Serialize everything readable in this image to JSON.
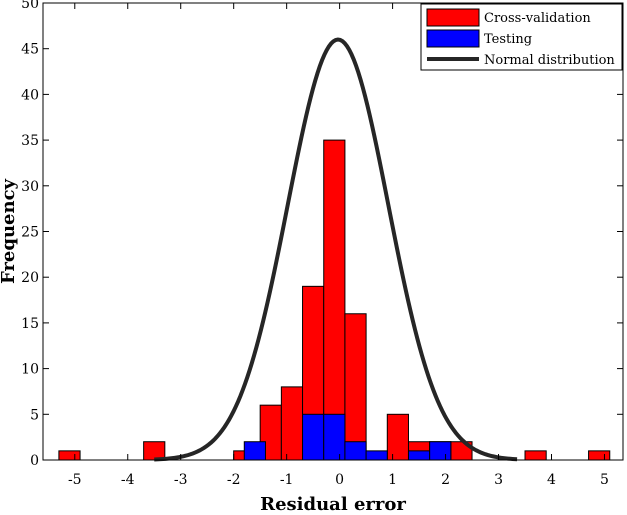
{
  "chart_data": {
    "type": "bar",
    "xlabel": "Residual error",
    "ylabel": "Frequency",
    "xlim": [
      -5.6,
      5.35
    ],
    "ylim": [
      0,
      50
    ],
    "xticks": [
      -5,
      -4,
      -3,
      -2,
      -1,
      0,
      1,
      2,
      3,
      4,
      5
    ],
    "yticks": [
      0,
      5,
      10,
      15,
      20,
      25,
      30,
      35,
      40,
      45,
      50
    ],
    "bin_width": 0.4,
    "grid": false,
    "legend_position": "top-right",
    "series": [
      {
        "name": "Cross-validation",
        "type": "bar",
        "color": "#ff0000",
        "bins": [
          {
            "x": -5.1,
            "y": 1
          },
          {
            "x": -3.5,
            "y": 2
          },
          {
            "x": -1.8,
            "y": 1
          },
          {
            "x": -1.3,
            "y": 6
          },
          {
            "x": -0.9,
            "y": 8
          },
          {
            "x": -0.5,
            "y": 19
          },
          {
            "x": -0.1,
            "y": 35
          },
          {
            "x": 0.3,
            "y": 16
          },
          {
            "x": 1.1,
            "y": 5
          },
          {
            "x": 1.5,
            "y": 2
          },
          {
            "x": 1.9,
            "y": 2
          },
          {
            "x": 2.3,
            "y": 2
          },
          {
            "x": 3.7,
            "y": 1
          },
          {
            "x": 4.9,
            "y": 1
          }
        ]
      },
      {
        "name": "Testing",
        "type": "bar",
        "color": "#0000ff",
        "bins": [
          {
            "x": -1.6,
            "y": 2
          },
          {
            "x": -0.5,
            "y": 5
          },
          {
            "x": -0.1,
            "y": 5
          },
          {
            "x": 0.3,
            "y": 2
          },
          {
            "x": 0.7,
            "y": 1
          },
          {
            "x": 1.5,
            "y": 1
          },
          {
            "x": 1.9,
            "y": 2
          }
        ]
      },
      {
        "name": "Normal distribution",
        "type": "line",
        "color": "#262626",
        "peak": 46,
        "mean": -0.03,
        "std": 0.95,
        "x_range": [
          -3.5,
          3.35
        ]
      }
    ]
  }
}
